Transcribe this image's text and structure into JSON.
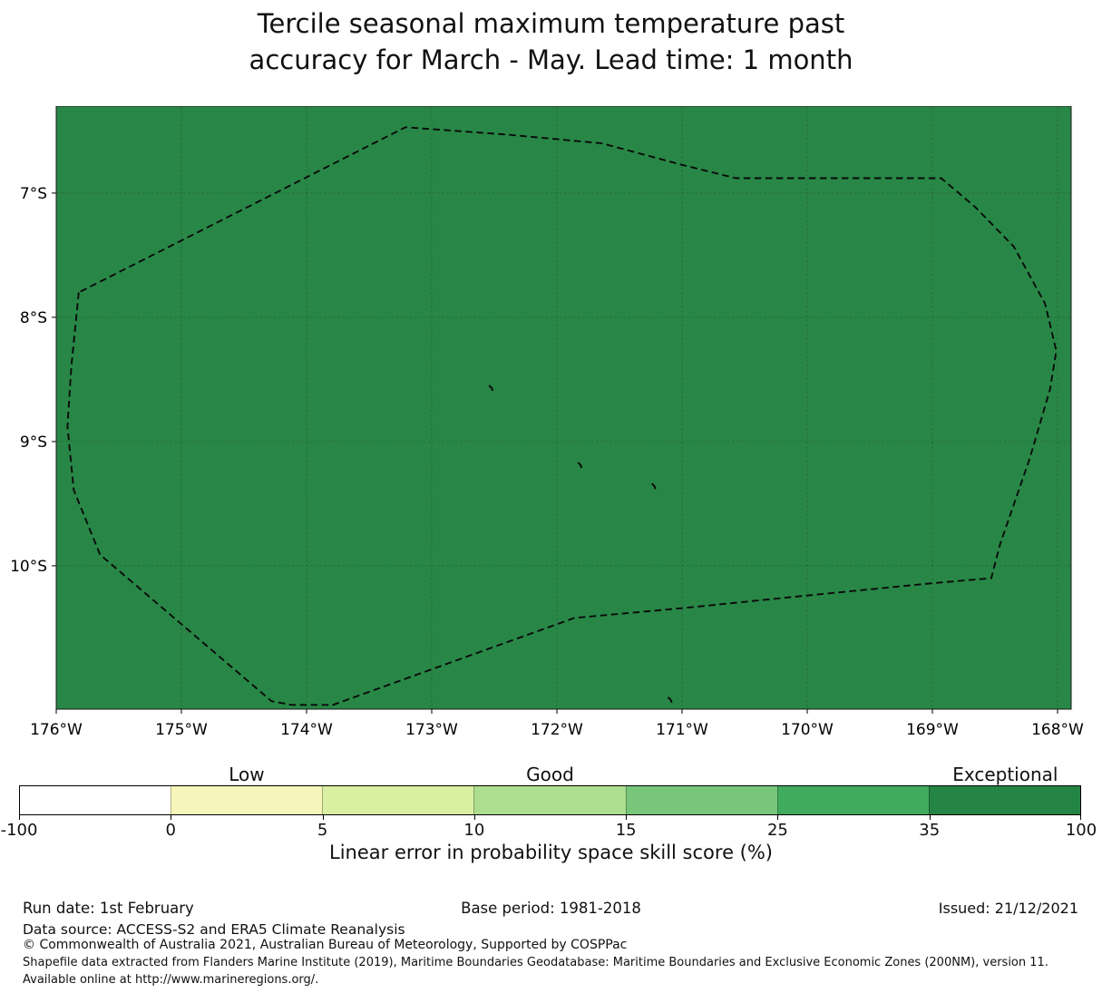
{
  "title": {
    "line1": "Tercile seasonal maximum temperature past",
    "line2": "accuracy for March - May. Lead time: 1 month"
  },
  "chart_data": {
    "type": "map",
    "title": "Tercile seasonal maximum temperature past accuracy for March - May. Lead time: 1 month",
    "map_fill_color": "#288746",
    "grid": true,
    "x_axis": {
      "tick_labels": [
        "176°W",
        "175°W",
        "174°W",
        "173°W",
        "172°W",
        "171°W",
        "170°W",
        "169°W",
        "168°W"
      ],
      "tick_lons_w": [
        176,
        175,
        174,
        173,
        172,
        171,
        170,
        169,
        168
      ]
    },
    "y_axis": {
      "tick_labels": [
        "7°S",
        "8°S",
        "9°S",
        "10°S"
      ],
      "tick_lats_s": [
        7,
        8,
        9,
        10
      ]
    },
    "extent": {
      "west_lon_w": 176.0,
      "east_lon_w": 167.89,
      "north_lat_s": 6.3,
      "south_lat_s": 11.15
    },
    "eez_boundary_lonlat_w_s": [
      [
        175.82,
        7.8
      ],
      [
        175.88,
        8.4
      ],
      [
        175.91,
        8.88
      ],
      [
        175.86,
        9.39
      ],
      [
        175.65,
        9.91
      ],
      [
        174.28,
        11.09
      ],
      [
        174.12,
        11.12
      ],
      [
        173.79,
        11.12
      ],
      [
        171.86,
        10.42
      ],
      [
        170.99,
        10.34
      ],
      [
        170.01,
        10.24
      ],
      [
        169.0,
        10.14
      ],
      [
        168.53,
        10.1
      ],
      [
        168.46,
        9.83
      ],
      [
        168.22,
        9.13
      ],
      [
        168.06,
        8.58
      ],
      [
        168.01,
        8.27
      ],
      [
        168.1,
        7.89
      ],
      [
        168.35,
        7.43
      ],
      [
        168.66,
        7.11
      ],
      [
        168.93,
        6.88
      ],
      [
        170.57,
        6.88
      ],
      [
        171.01,
        6.77
      ],
      [
        171.64,
        6.6
      ],
      [
        172.39,
        6.53
      ],
      [
        173.21,
        6.47
      ]
    ],
    "island_marks_lonlat_w_s": [
      [
        172.52,
        8.57
      ],
      [
        171.81,
        9.19
      ],
      [
        171.22,
        9.36
      ],
      [
        171.09,
        11.08
      ]
    ],
    "colorbar": {
      "title": "Linear error in probability space skill score (%)",
      "tick_labels": [
        "-100",
        "0",
        "5",
        "10",
        "15",
        "25",
        "35",
        "100"
      ],
      "segment_colors": [
        "#ffffff",
        "#f6f6ba",
        "#d9f0a3",
        "#addd8e",
        "#78c679",
        "#41ab5d",
        "#238443"
      ],
      "category_labels": [
        {
          "text": "Low",
          "segment": 1
        },
        {
          "text": "Good",
          "segment": 3
        },
        {
          "text": "Exceptional",
          "segment": 6
        }
      ]
    }
  },
  "footer": {
    "run_date": "Run date: 1st February",
    "base_period": "Base period: 1981-2018",
    "issued": "Issued: 21/12/2021",
    "data_source": "Data source: ACCESS-S2 and ERA5 Climate Reanalysis",
    "copyright": "© Commonwealth of Australia 2021, Australian Bureau of Meteorology, Supported by COSPPac",
    "shapefile_note": "Shapefile data extracted from Flanders Marine Institute (2019), Maritime Boundaries Geodatabase: Maritime Boundaries and Exclusive Economic Zones (200NM), version 11. Available online at http://www.marineregions.org/."
  }
}
